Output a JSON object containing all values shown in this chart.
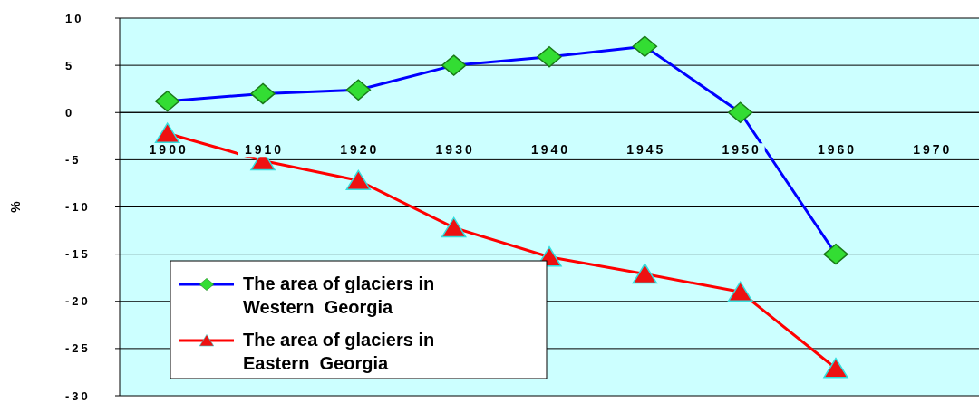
{
  "chart_data": {
    "type": "line",
    "ylabel": "%",
    "categories": [
      "1900",
      "1910",
      "1920",
      "1930",
      "1940",
      "1945",
      "1950",
      "1960",
      "1970"
    ],
    "series": [
      {
        "name": "The area of glaciers in Western  Georgia",
        "color": "#0000ff",
        "marker": "diamond",
        "values": [
          1.2,
          2,
          2.4,
          5,
          5.9,
          7,
          0,
          -15,
          null
        ]
      },
      {
        "name": "The area of glaciers in Eastern  Georgia",
        "color": "#ff0000",
        "marker": "triangle",
        "values": [
          -2.2,
          -5.1,
          -7.2,
          -12.2,
          -15.3,
          -17.1,
          -19,
          -27.1,
          null
        ]
      }
    ],
    "ylim": [
      -30,
      10
    ],
    "yticks": [
      -30,
      -25,
      -20,
      -15,
      -10,
      -5,
      0,
      5,
      10
    ],
    "grid": "y",
    "legend": "bottom left"
  }
}
